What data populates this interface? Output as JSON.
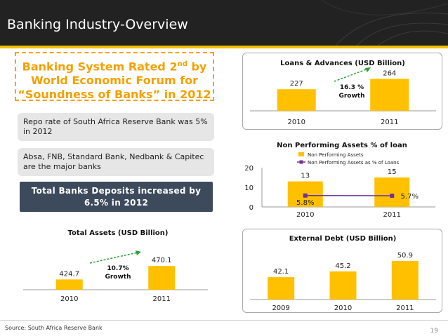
{
  "header": {
    "title": "Banking Industry-Overview"
  },
  "highlights": {
    "rated_line1_pre": "Banking System Rated 2",
    "rated_line1_sup": "nd",
    "rated_line1_post": " by",
    "rated_line2": "World Economic Forum for",
    "rated_line3": "“Soundness of Banks” in 2012",
    "repo": "Repo rate of South Africa Reserve Bank was 5% in 2012",
    "major_banks": "Absa, FNB, Standard Bank, Nedbank & Capitec are the major banks",
    "deposits_line1": "Total Banks Deposits increased by",
    "deposits_line2": "6.5% in 2012"
  },
  "footer": {
    "source": "Source: South Africa Reserve Bank",
    "page": "19"
  },
  "colors": {
    "bar": "#ffc000",
    "header_bg": "#222222",
    "accent": "#f5a000",
    "line": "#7030a0",
    "dark_box": "#3d4a5c"
  },
  "chart_data": [
    {
      "id": "loans",
      "type": "bar",
      "title": "Loans & Advances (USD Billion)",
      "categories": [
        "2010",
        "2011"
      ],
      "values": [
        227,
        264
      ],
      "value_labels": [
        "227",
        "264"
      ],
      "annotation": [
        "16.3 %",
        "Growth"
      ]
    },
    {
      "id": "npa",
      "type": "bar",
      "title": "Non Performing Assets % of loan",
      "categories": [
        "2010",
        "2011"
      ],
      "ylim": [
        0,
        20
      ],
      "yticks": [
        "0",
        "10",
        "20"
      ],
      "series": [
        {
          "name": "Non Performing Assets",
          "type": "bar",
          "values": [
            13,
            15
          ],
          "labels": [
            "13",
            "15"
          ]
        },
        {
          "name": "Non Performing Assets as % of Loans",
          "type": "line",
          "values": [
            5.8,
            5.7
          ],
          "labels": [
            "5.8%",
            "5.7%"
          ]
        }
      ],
      "legend": "top"
    },
    {
      "id": "assets",
      "type": "bar",
      "title": "Total Assets (USD Billion)",
      "categories": [
        "2010",
        "2011"
      ],
      "values": [
        424.7,
        470.1
      ],
      "value_labels": [
        "424.7",
        "470.1"
      ],
      "annotation": [
        "10.7%",
        "Growth"
      ]
    },
    {
      "id": "debt",
      "type": "bar",
      "title": "External Debt (USD Billion)",
      "categories": [
        "2009",
        "2010",
        "2011"
      ],
      "values": [
        42.1,
        45.2,
        50.9
      ],
      "value_labels": [
        "42.1",
        "45.2",
        "50.9"
      ]
    }
  ]
}
